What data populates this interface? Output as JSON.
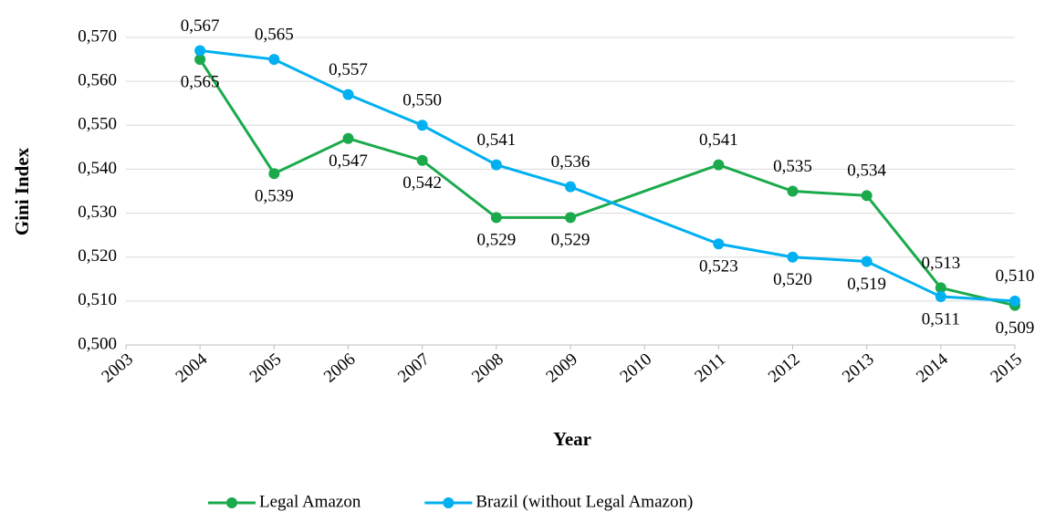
{
  "chart_data": {
    "type": "line",
    "x_label": "Year",
    "y_label": "Gini Index",
    "x": [
      2004,
      2005,
      2006,
      2007,
      2008,
      2009,
      2011,
      2012,
      2013,
      2014,
      2015
    ],
    "xlim": [
      2003,
      2015
    ],
    "xticks": [
      2003,
      2004,
      2005,
      2006,
      2007,
      2008,
      2009,
      2010,
      2011,
      2012,
      2013,
      2014,
      2015
    ],
    "ylim": [
      0.5,
      0.57
    ],
    "yticks": [
      {
        "value": 0.5,
        "label": "0,500"
      },
      {
        "value": 0.51,
        "label": "0,510"
      },
      {
        "value": 0.52,
        "label": "0,520"
      },
      {
        "value": 0.53,
        "label": "0,530"
      },
      {
        "value": 0.54,
        "label": "0,540"
      },
      {
        "value": 0.55,
        "label": "0,550"
      },
      {
        "value": 0.56,
        "label": "0,560"
      },
      {
        "value": 0.57,
        "label": "0,570"
      }
    ],
    "grid": true,
    "legend": "bottom",
    "series": [
      {
        "name": "Legal Amazon",
        "color": "#1aaa4b",
        "values": [
          0.565,
          0.539,
          0.547,
          0.542,
          0.529,
          0.529,
          0.541,
          0.535,
          0.534,
          0.513,
          0.509
        ],
        "value_labels": [
          "0,565",
          "0,539",
          "0,547",
          "0,542",
          "0,529",
          "0,529",
          "0,541",
          "0,535",
          "0,534",
          "0,513",
          "0,509"
        ]
      },
      {
        "name": "Brazil (without Legal Amazon)",
        "color": "#00b0f0",
        "values": [
          0.567,
          0.565,
          0.557,
          0.55,
          0.541,
          0.536,
          0.523,
          0.52,
          0.519,
          0.511,
          0.51
        ],
        "value_labels": [
          "0,567",
          "0,565",
          "0,557",
          "0,550",
          "0,541",
          "0,536",
          "0,523",
          "0,520",
          "0,519",
          "0,511",
          "0,510"
        ]
      }
    ]
  }
}
